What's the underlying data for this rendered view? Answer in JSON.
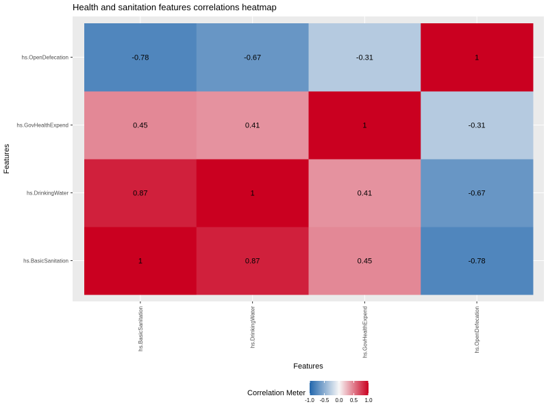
{
  "chart_data": {
    "type": "heatmap",
    "title": "Health and sanitation features correlations heatmap",
    "xlabel": "Features",
    "ylabel": "Features",
    "x_categories": [
      "hs.BasicSanitation",
      "hs.DrinkingWater",
      "hs.GovHealthExpend",
      "hs.OpenDefecation"
    ],
    "y_categories": [
      "hs.BasicSanitation",
      "hs.DrinkingWater",
      "hs.GovHealthExpend",
      "hs.OpenDefecation"
    ],
    "values": [
      [
        1,
        0.87,
        0.45,
        -0.78
      ],
      [
        0.87,
        1,
        0.41,
        -0.67
      ],
      [
        0.45,
        0.41,
        1,
        -0.31
      ],
      [
        -0.78,
        -0.67,
        -0.31,
        1
      ]
    ],
    "grid": true,
    "legend": {
      "title": "Correlation Meter",
      "position": "bottom",
      "ticks": [
        -1.0,
        -0.5,
        0.0,
        0.5,
        1.0
      ],
      "tick_labels": [
        "-1.0",
        "-0.5",
        "0.0",
        "0.5",
        "1.0"
      ],
      "range": [
        -1,
        1
      ],
      "colors": {
        "low": "#2166ac",
        "mid": "#f7f7f7",
        "high": "#ca0020"
      }
    },
    "panel_background": "#ebebeb"
  }
}
